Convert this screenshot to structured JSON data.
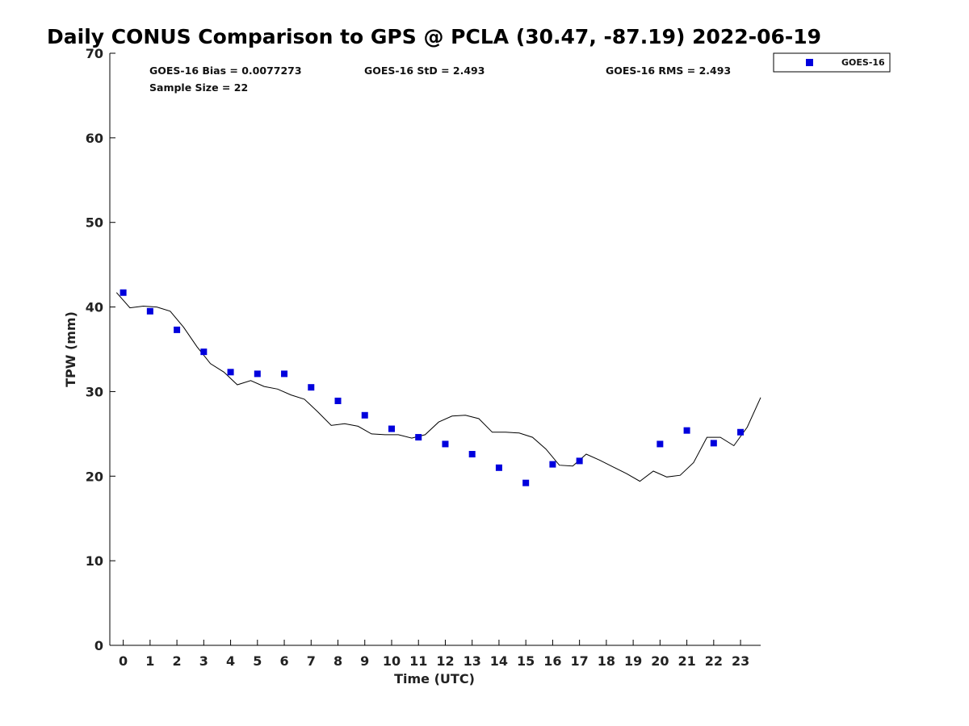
{
  "chart_data": {
    "type": "scatter",
    "title": "Daily CONUS Comparison to GPS @ PCLA (30.47, -87.19) 2022-06-19",
    "xlabel": "Time (UTC)",
    "ylabel": "TPW (mm)",
    "xlim": [
      -0.5,
      23.75
    ],
    "ylim": [
      0,
      70
    ],
    "xticks": [
      0,
      1,
      2,
      3,
      4,
      5,
      6,
      7,
      8,
      9,
      10,
      11,
      12,
      13,
      14,
      15,
      16,
      17,
      18,
      19,
      20,
      21,
      22,
      23
    ],
    "yticks": [
      0,
      10,
      20,
      30,
      40,
      50,
      60,
      70
    ],
    "grid": false,
    "legend_position": "top-right, outside plot",
    "stats": {
      "bias": "GOES-16 Bias = 0.0077273",
      "std": "GOES-16 StD = 2.493",
      "rms": "GOES-16 RMS = 2.493",
      "sample": "Sample Size = 22"
    },
    "series": [
      {
        "name": "GOES-16",
        "kind": "scatter",
        "marker": "square",
        "color": "#0000dd",
        "x": [
          0,
          1,
          2,
          3,
          4,
          5,
          6,
          7,
          8,
          9,
          10,
          11,
          12,
          13,
          14,
          15,
          16,
          17,
          20,
          21,
          22,
          23
        ],
        "y": [
          41.7,
          39.5,
          37.3,
          34.7,
          32.3,
          32.1,
          32.1,
          30.5,
          28.9,
          27.2,
          25.6,
          24.6,
          23.8,
          22.6,
          21.0,
          19.2,
          21.4,
          21.8,
          23.8,
          25.4,
          23.9,
          25.2
        ]
      },
      {
        "kind": "line",
        "color": "#000000",
        "x": [
          -0.25,
          0.25,
          0.75,
          1.25,
          1.75,
          2.25,
          2.75,
          3.25,
          3.75,
          4.25,
          4.75,
          5.25,
          5.75,
          6.25,
          6.75,
          7.25,
          7.75,
          8.25,
          8.75,
          9.25,
          9.75,
          10.25,
          10.75,
          11.25,
          11.75,
          12.25,
          12.75,
          13.25,
          13.75,
          14.25,
          14.75,
          15.25,
          15.75,
          16.25,
          16.75,
          17.25,
          17.75,
          18.25,
          18.75,
          19.25,
          19.75,
          20.25,
          20.75,
          21.25,
          21.75,
          22.25,
          22.75,
          23.25,
          23.75
        ],
        "y": [
          41.7,
          39.9,
          40.1,
          40.0,
          39.5,
          37.6,
          35.3,
          33.3,
          32.3,
          30.8,
          31.3,
          30.6,
          30.3,
          29.6,
          29.1,
          27.6,
          26.0,
          26.2,
          25.9,
          25.0,
          24.9,
          24.9,
          24.5,
          24.9,
          26.4,
          27.1,
          27.2,
          26.8,
          25.2,
          25.2,
          25.1,
          24.6,
          23.2,
          21.3,
          21.2,
          22.6,
          21.9,
          21.1,
          20.3,
          19.4,
          20.6,
          19.9,
          20.1,
          21.6,
          24.6,
          24.6,
          23.6,
          25.8,
          29.3
        ]
      }
    ]
  }
}
